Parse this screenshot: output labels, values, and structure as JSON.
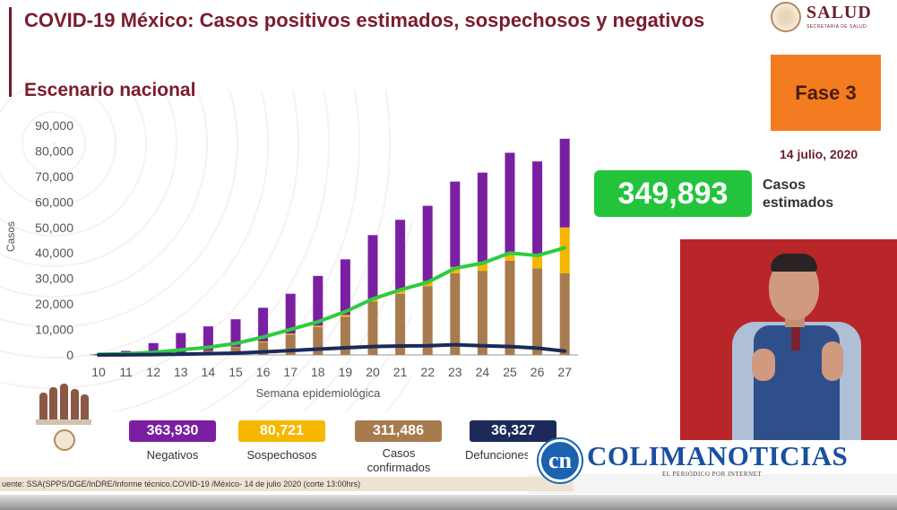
{
  "header": {
    "title": "COVID-19 México: Casos positivos estimados, sospechosos y negativos",
    "subtitle": "Escenario nacional"
  },
  "logo": {
    "word": "SALUD",
    "subtext": "SECRETARÍA DE SALUD"
  },
  "phase": {
    "label": "Fase 3",
    "color": "#f47c20"
  },
  "date": "14 julio, 2020",
  "estimate": {
    "value": "349,893",
    "label": "Casos estimados",
    "color": "#23c43c"
  },
  "chart_data": {
    "type": "bar",
    "xlabel": "Semana epidemiológica",
    "ylabel": "Casos",
    "ylim": [
      0,
      90000
    ],
    "yticks": [
      "0",
      "10,000",
      "20,000",
      "30,000",
      "40,000",
      "50,000",
      "60,000",
      "70,000",
      "80,000",
      "90,000"
    ],
    "categories": [
      "10",
      "11",
      "12",
      "13",
      "14",
      "15",
      "16",
      "17",
      "18",
      "19",
      "20",
      "21",
      "22",
      "23",
      "24",
      "25",
      "26",
      "27"
    ],
    "grid": false,
    "stacked": true,
    "series": [
      {
        "name": "Casos confirmados",
        "color": "#a87b4f",
        "values": [
          20,
          80,
          350,
          800,
          1500,
          3000,
          5000,
          8000,
          11000,
          15000,
          21000,
          24000,
          27000,
          32000,
          33000,
          37000,
          34000,
          32000
        ]
      },
      {
        "name": "Sospechosos",
        "color": "#f5b700",
        "values": [
          0,
          0,
          0,
          0,
          100,
          200,
          300,
          400,
          500,
          700,
          1000,
          1500,
          2000,
          2500,
          3500,
          2500,
          5000,
          18000
        ]
      },
      {
        "name": "Negativos",
        "color": "#7a1fa2",
        "values": [
          280,
          1500,
          4300,
          7800,
          9600,
          10800,
          13200,
          15600,
          19500,
          21800,
          25000,
          27500,
          29500,
          33500,
          35000,
          39800,
          36900,
          34800
        ]
      }
    ],
    "lines": [
      {
        "name": "Casos positivos estimados",
        "color": "#2ecc40",
        "values": [
          200,
          500,
          1000,
          2000,
          3000,
          4500,
          7000,
          10000,
          13000,
          17000,
          22000,
          25500,
          28500,
          34000,
          36000,
          40000,
          39000,
          42000
        ]
      },
      {
        "name": "Defunciones",
        "color": "#1c2a5a",
        "values": [
          0,
          50,
          150,
          300,
          500,
          700,
          1200,
          1700,
          2300,
          2800,
          3300,
          3500,
          3600,
          4000,
          3600,
          3300,
          2700,
          1500
        ]
      }
    ],
    "legend": [
      {
        "value": "363,930",
        "label": "Negativos",
        "color": "#7a1fa2"
      },
      {
        "value": "80,721",
        "label": "Sospechosos",
        "color": "#f5b700"
      },
      {
        "value": "311,486",
        "label": "Casos confirmados",
        "color": "#a87b4f"
      },
      {
        "value": "36,327",
        "label": "Defunciones",
        "color": "#1c2a5a"
      }
    ]
  },
  "source_note": "uente: SSA(SPPS/DGE/InDRE/Informe técnico.COVID-19 /México- 14 de julio 2020 (corte 13:00hrs)",
  "brand": {
    "icon_text": "cn",
    "name": "COLIMANOTICIAS",
    "tagline": "EL PERIÓDICO POR INTERNET"
  }
}
